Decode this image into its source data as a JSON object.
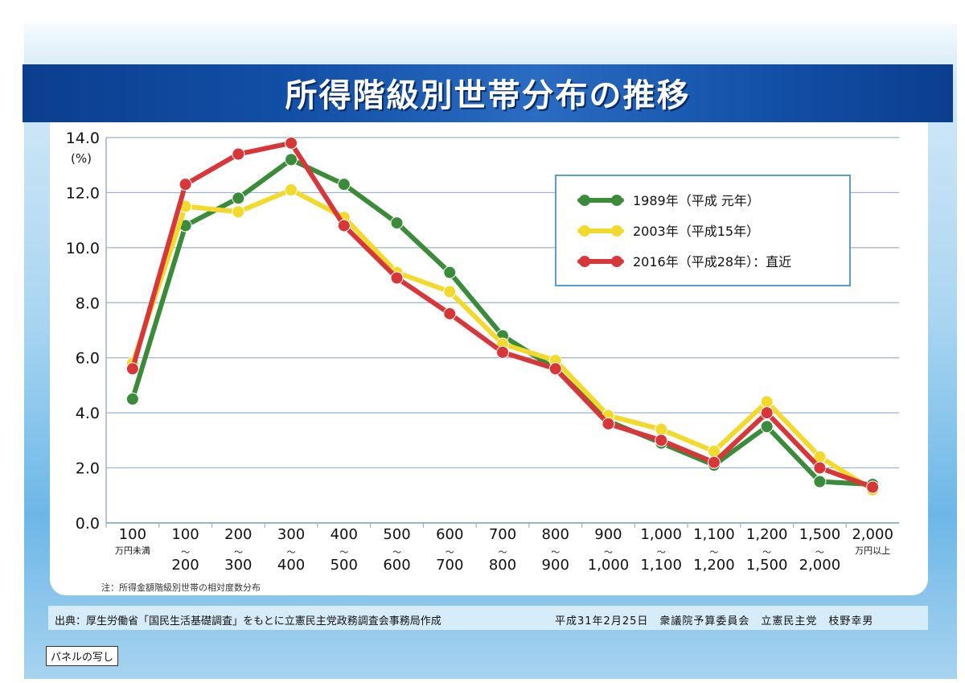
{
  "title": "所得階級別世帯分布の推移",
  "unit_label": "(%)",
  "note": "注：所得金額階級別世帯の相対度数分布",
  "footer": {
    "source": "出典：厚生労働省「国民生活基礎調査」をもとに立憲民主党政務調査会事務局作成",
    "credit": "平成31年2月25日　衆議院予算委員会　立憲民主党　枝野幸男"
  },
  "stamp": "パネルの写し",
  "colors": {
    "series_1989": "#3a8c3a",
    "series_2003": "#f3d92c",
    "series_2016": "#d9363a",
    "grid": "#9ab0d4",
    "title_band": "#1350a8"
  },
  "chart_data": {
    "type": "line",
    "title": "所得階級別世帯分布の推移",
    "ylabel": "(%)",
    "ylim": [
      0,
      14
    ],
    "y_ticks": [
      "0.0",
      "2.0",
      "4.0",
      "6.0",
      "8.0",
      "10.0",
      "12.0",
      "14.0"
    ],
    "grid": true,
    "legend_position": "top-right",
    "categories": [
      {
        "top": "100",
        "sep": "",
        "bottom": "",
        "sub": "万円未満"
      },
      {
        "top": "100",
        "sep": "〜",
        "bottom": "200",
        "sub": ""
      },
      {
        "top": "200",
        "sep": "〜",
        "bottom": "300",
        "sub": ""
      },
      {
        "top": "300",
        "sep": "〜",
        "bottom": "400",
        "sub": ""
      },
      {
        "top": "400",
        "sep": "〜",
        "bottom": "500",
        "sub": ""
      },
      {
        "top": "500",
        "sep": "〜",
        "bottom": "600",
        "sub": ""
      },
      {
        "top": "600",
        "sep": "〜",
        "bottom": "700",
        "sub": ""
      },
      {
        "top": "700",
        "sep": "〜",
        "bottom": "800",
        "sub": ""
      },
      {
        "top": "800",
        "sep": "〜",
        "bottom": "900",
        "sub": ""
      },
      {
        "top": "900",
        "sep": "〜",
        "bottom": "1,000",
        "sub": ""
      },
      {
        "top": "1,000",
        "sep": "〜",
        "bottom": "1,100",
        "sub": ""
      },
      {
        "top": "1,100",
        "sep": "〜",
        "bottom": "1,200",
        "sub": ""
      },
      {
        "top": "1,200",
        "sep": "〜",
        "bottom": "1,500",
        "sub": ""
      },
      {
        "top": "1,500",
        "sep": "〜",
        "bottom": "2,000",
        "sub": ""
      },
      {
        "top": "2,000",
        "sep": "",
        "bottom": "",
        "sub": "万円以上"
      }
    ],
    "series": [
      {
        "name": "1989年（平成 元年）",
        "color_key": "series_1989",
        "values": [
          4.5,
          10.8,
          11.8,
          13.2,
          12.3,
          10.9,
          9.1,
          6.8,
          5.6,
          3.7,
          2.9,
          2.1,
          3.5,
          1.5,
          1.4
        ]
      },
      {
        "name": "2003年（平成15年）",
        "color_key": "series_2003",
        "values": [
          5.8,
          11.5,
          11.3,
          12.1,
          11.1,
          9.1,
          8.4,
          6.5,
          5.9,
          3.9,
          3.4,
          2.6,
          4.4,
          2.4,
          1.2
        ]
      },
      {
        "name": "2016年（平成28年）：直近",
        "color_key": "series_2016",
        "values": [
          5.6,
          12.3,
          13.4,
          13.8,
          10.8,
          8.9,
          7.6,
          6.2,
          5.6,
          3.6,
          3.0,
          2.2,
          4.0,
          2.0,
          1.3
        ]
      }
    ]
  }
}
